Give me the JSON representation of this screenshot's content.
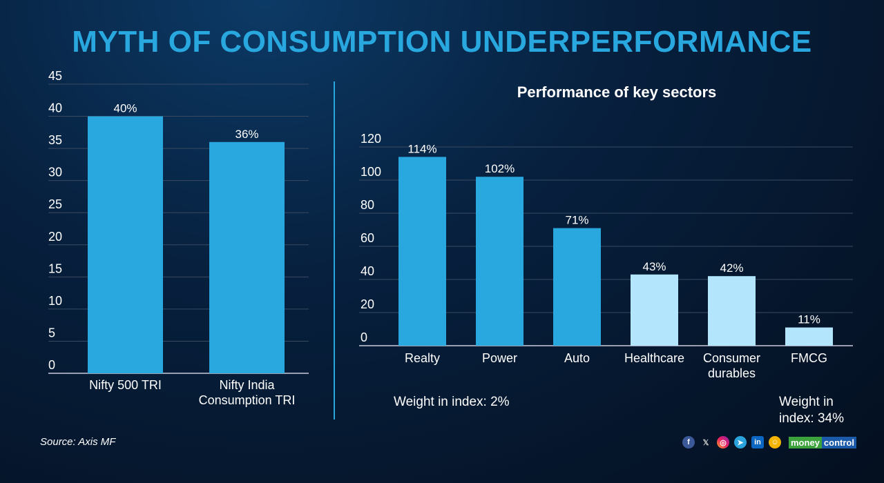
{
  "title": "MYTH OF CONSUMPTION UNDERPERFORMANCE",
  "source": "Source: Axis MF",
  "colors": {
    "dark_bar": "#29a8e0",
    "light_bar": "#b3e5fc",
    "title": "#29a8e0"
  },
  "notes": {
    "left": "Weight in index: 2%",
    "right": "Weight in index: 34%"
  },
  "brand": {
    "part1": "money",
    "part2": "control"
  },
  "social_icons": [
    "facebook-icon",
    "x-icon",
    "instagram-icon",
    "telegram-icon",
    "linkedin-icon",
    "snapchat-icon"
  ],
  "chart_data": [
    {
      "type": "bar",
      "title": "",
      "categories": [
        "Nifty 500 TRI",
        "Nifty India Consumption TRI"
      ],
      "values": [
        40,
        36
      ],
      "labels": [
        "40%",
        "36%"
      ],
      "ylim": [
        0,
        45
      ],
      "yticks": [
        0,
        5,
        10,
        15,
        20,
        25,
        30,
        35,
        40,
        45
      ],
      "grid": true
    },
    {
      "type": "bar",
      "title": "Performance of key sectors",
      "categories": [
        "Realty",
        "Power",
        "Auto",
        "Healthcare",
        "Consumer durables",
        "FMCG"
      ],
      "values": [
        114,
        102,
        71,
        43,
        42,
        11
      ],
      "labels": [
        "114%",
        "102%",
        "71%",
        "43%",
        "42%",
        "11%"
      ],
      "highlight": [
        true,
        true,
        true,
        false,
        false,
        false
      ],
      "ylim": [
        0,
        120
      ],
      "yticks": [
        0,
        20,
        40,
        60,
        80,
        100,
        120
      ],
      "grid": true
    }
  ]
}
